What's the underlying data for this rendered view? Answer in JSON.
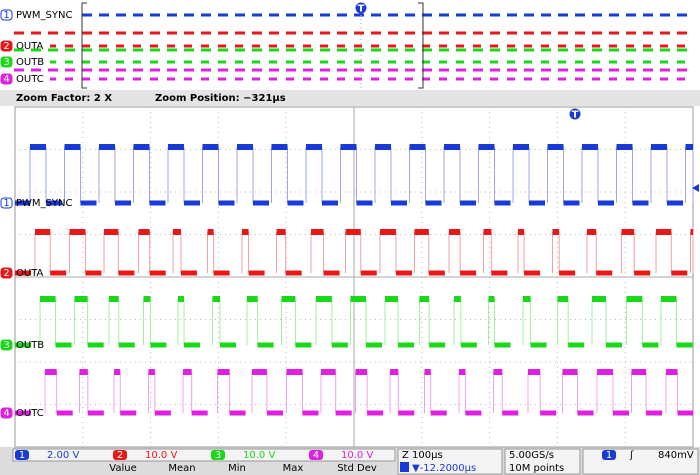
{
  "channels": [
    {
      "number": "1",
      "label": "PWM_SYNC",
      "scale": "2.00 V"
    },
    {
      "number": "2",
      "label": "OUTA",
      "scale": "10.0 V"
    },
    {
      "number": "3",
      "label": "OUTB",
      "scale": "10.0 V"
    },
    {
      "number": "4",
      "label": "OUTC",
      "scale": "10.0 V"
    }
  ],
  "trigger_marker": "T",
  "zoom_bar": {
    "factor": "Zoom Factor: 2 X",
    "position": "Zoom Position: −321µs"
  },
  "status": {
    "timebase": "Z 100µs",
    "delay": "▼-12.2000µs",
    "sample_rate": "5.00GS/s",
    "record_length": "10M points",
    "trigger_source": "1",
    "trigger_slope": "ʃ",
    "trigger_level": "840mV"
  },
  "measurements": {
    "headers": [
      "Value",
      "Mean",
      "Min",
      "Max",
      "Std Dev"
    ]
  }
}
